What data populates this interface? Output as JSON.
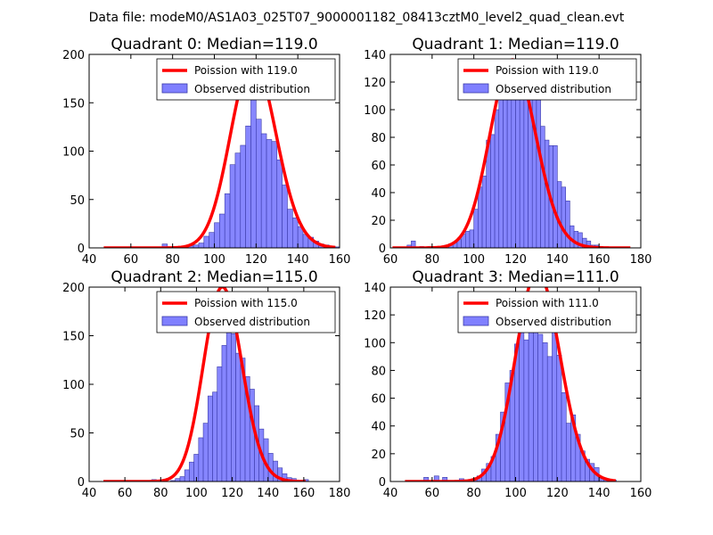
{
  "figure_title": "Data file: modeM0/AS1A03_025T07_9000001182_08413cztM0_level2_quad_clean.evt",
  "colors": {
    "poisson_line": "#ff0000",
    "hist_fill": "#8080ff",
    "hist_edge": "#3a3aa8"
  },
  "chart_data": [
    {
      "type": "bar",
      "title": "Quadrant 0: Median=119.0",
      "median": 119.0,
      "xlim": [
        40,
        160
      ],
      "ylim": [
        0,
        200
      ],
      "xticks": [
        40,
        60,
        80,
        100,
        120,
        140,
        160
      ],
      "yticks": [
        0,
        50,
        100,
        150,
        200
      ],
      "legend": [
        "Poission with 119.0",
        "Observed distribution"
      ],
      "legend_position": "top-right",
      "bin_width": 2.5,
      "hist_x": [
        75,
        85,
        87.5,
        90,
        92.5,
        95,
        97.5,
        100,
        102.5,
        105,
        107.5,
        110,
        112.5,
        115,
        117.5,
        120,
        122.5,
        125,
        127.5,
        130,
        132.5,
        135,
        137.5,
        140,
        142.5,
        145,
        147.5,
        150,
        152.5,
        155,
        157.5
      ],
      "hist_y": [
        4,
        1,
        2,
        3,
        5,
        12,
        16,
        26,
        35,
        56,
        86,
        98,
        106,
        126,
        195,
        133,
        118,
        112,
        110,
        91,
        65,
        40,
        31,
        22,
        14,
        11,
        7,
        4,
        3,
        2,
        1
      ],
      "poisson_mean": 119.0,
      "poisson_peak": 194,
      "poisson_x_range": [
        47,
        158
      ]
    },
    {
      "type": "bar",
      "title": "Quadrant 1: Median=119.0",
      "median": 119.0,
      "xlim": [
        60,
        180
      ],
      "ylim": [
        0,
        140
      ],
      "xticks": [
        60,
        80,
        100,
        120,
        140,
        160,
        180
      ],
      "yticks": [
        0,
        20,
        40,
        60,
        80,
        100,
        120,
        140
      ],
      "legend": [
        "Poission with 119.0",
        "Observed distribution"
      ],
      "legend_position": "top-right",
      "bin_width": 2,
      "hist_x": [
        68,
        70,
        74,
        78,
        82,
        86,
        88,
        90,
        92,
        94,
        96,
        98,
        100,
        102,
        104,
        106,
        108,
        110,
        112,
        114,
        116,
        118,
        120,
        122,
        124,
        126,
        128,
        130,
        132,
        134,
        136,
        138,
        140,
        142,
        144,
        146,
        148,
        150,
        152,
        154,
        156,
        158,
        160
      ],
      "hist_y": [
        2,
        5,
        1,
        1,
        1,
        2,
        3,
        4,
        6,
        10,
        12,
        13,
        28,
        44,
        52,
        78,
        82,
        100,
        113,
        122,
        113,
        131,
        133,
        128,
        116,
        117,
        128,
        107,
        88,
        78,
        74,
        74,
        48,
        44,
        34,
        16,
        12,
        11,
        7,
        5,
        2,
        2,
        1
      ],
      "poisson_mean": 119.0,
      "poisson_peak": 136,
      "poisson_x_range": [
        61,
        175
      ]
    },
    {
      "type": "bar",
      "title": "Quadrant 2: Median=115.0",
      "median": 115.0,
      "xlim": [
        40,
        180
      ],
      "ylim": [
        0,
        200
      ],
      "xticks": [
        40,
        60,
        80,
        100,
        120,
        140,
        160,
        180
      ],
      "yticks": [
        0,
        50,
        100,
        150,
        200
      ],
      "legend": [
        "Poission with 115.0",
        "Observed distribution"
      ],
      "legend_position": "top-right",
      "bin_width": 2.6,
      "hist_x": [
        64,
        75,
        85.6,
        88.2,
        90.8,
        93.4,
        96,
        98.6,
        101.2,
        103.8,
        106.4,
        109,
        111.6,
        114.2,
        116.8,
        119.4,
        122,
        124.6,
        127.2,
        129.8,
        132.4,
        135,
        137.6,
        140.2,
        142.8,
        145.4,
        148,
        150.6,
        153.2,
        160
      ],
      "hist_y": [
        1,
        2,
        1,
        3,
        5,
        12,
        20,
        28,
        45,
        60,
        88,
        92,
        118,
        140,
        178,
        152,
        132,
        127,
        108,
        95,
        78,
        54,
        44,
        29,
        21,
        14,
        8,
        4,
        3,
        2
      ],
      "poisson_mean": 115.0,
      "poisson_peak": 200,
      "poisson_x_range": [
        48,
        161
      ]
    },
    {
      "type": "bar",
      "title": "Quadrant 3: Median=111.0",
      "median": 111.0,
      "xlim": [
        40,
        160
      ],
      "ylim": [
        0,
        140
      ],
      "xticks": [
        40,
        60,
        80,
        100,
        120,
        140,
        160
      ],
      "yticks": [
        0,
        20,
        40,
        60,
        80,
        100,
        120,
        140
      ],
      "legend": [
        "Poission with 111.0",
        "Observed distribution"
      ],
      "legend_position": "top-right",
      "bin_width": 2.25,
      "hist_x": [
        56,
        61,
        65,
        73,
        79.25,
        81.5,
        83.75,
        86,
        88.25,
        90.5,
        92.75,
        95,
        97.25,
        99.5,
        101.75,
        104,
        106.25,
        108.5,
        110.75,
        113,
        115.25,
        117.5,
        119.75,
        122,
        124.25,
        126.5,
        128.75,
        131,
        133.25,
        135.5,
        137.75,
        140,
        142.25,
        146
      ],
      "hist_y": [
        3,
        4,
        3,
        2,
        2,
        4,
        9,
        13,
        18,
        34,
        50,
        71,
        80,
        99,
        123,
        102,
        119,
        108,
        106,
        100,
        90,
        117,
        91,
        64,
        42,
        48,
        34,
        22,
        16,
        13,
        10,
        3,
        2,
        1
      ],
      "poisson_mean": 111.0,
      "poisson_peak": 151,
      "poisson_x_range": [
        47,
        148
      ]
    }
  ]
}
